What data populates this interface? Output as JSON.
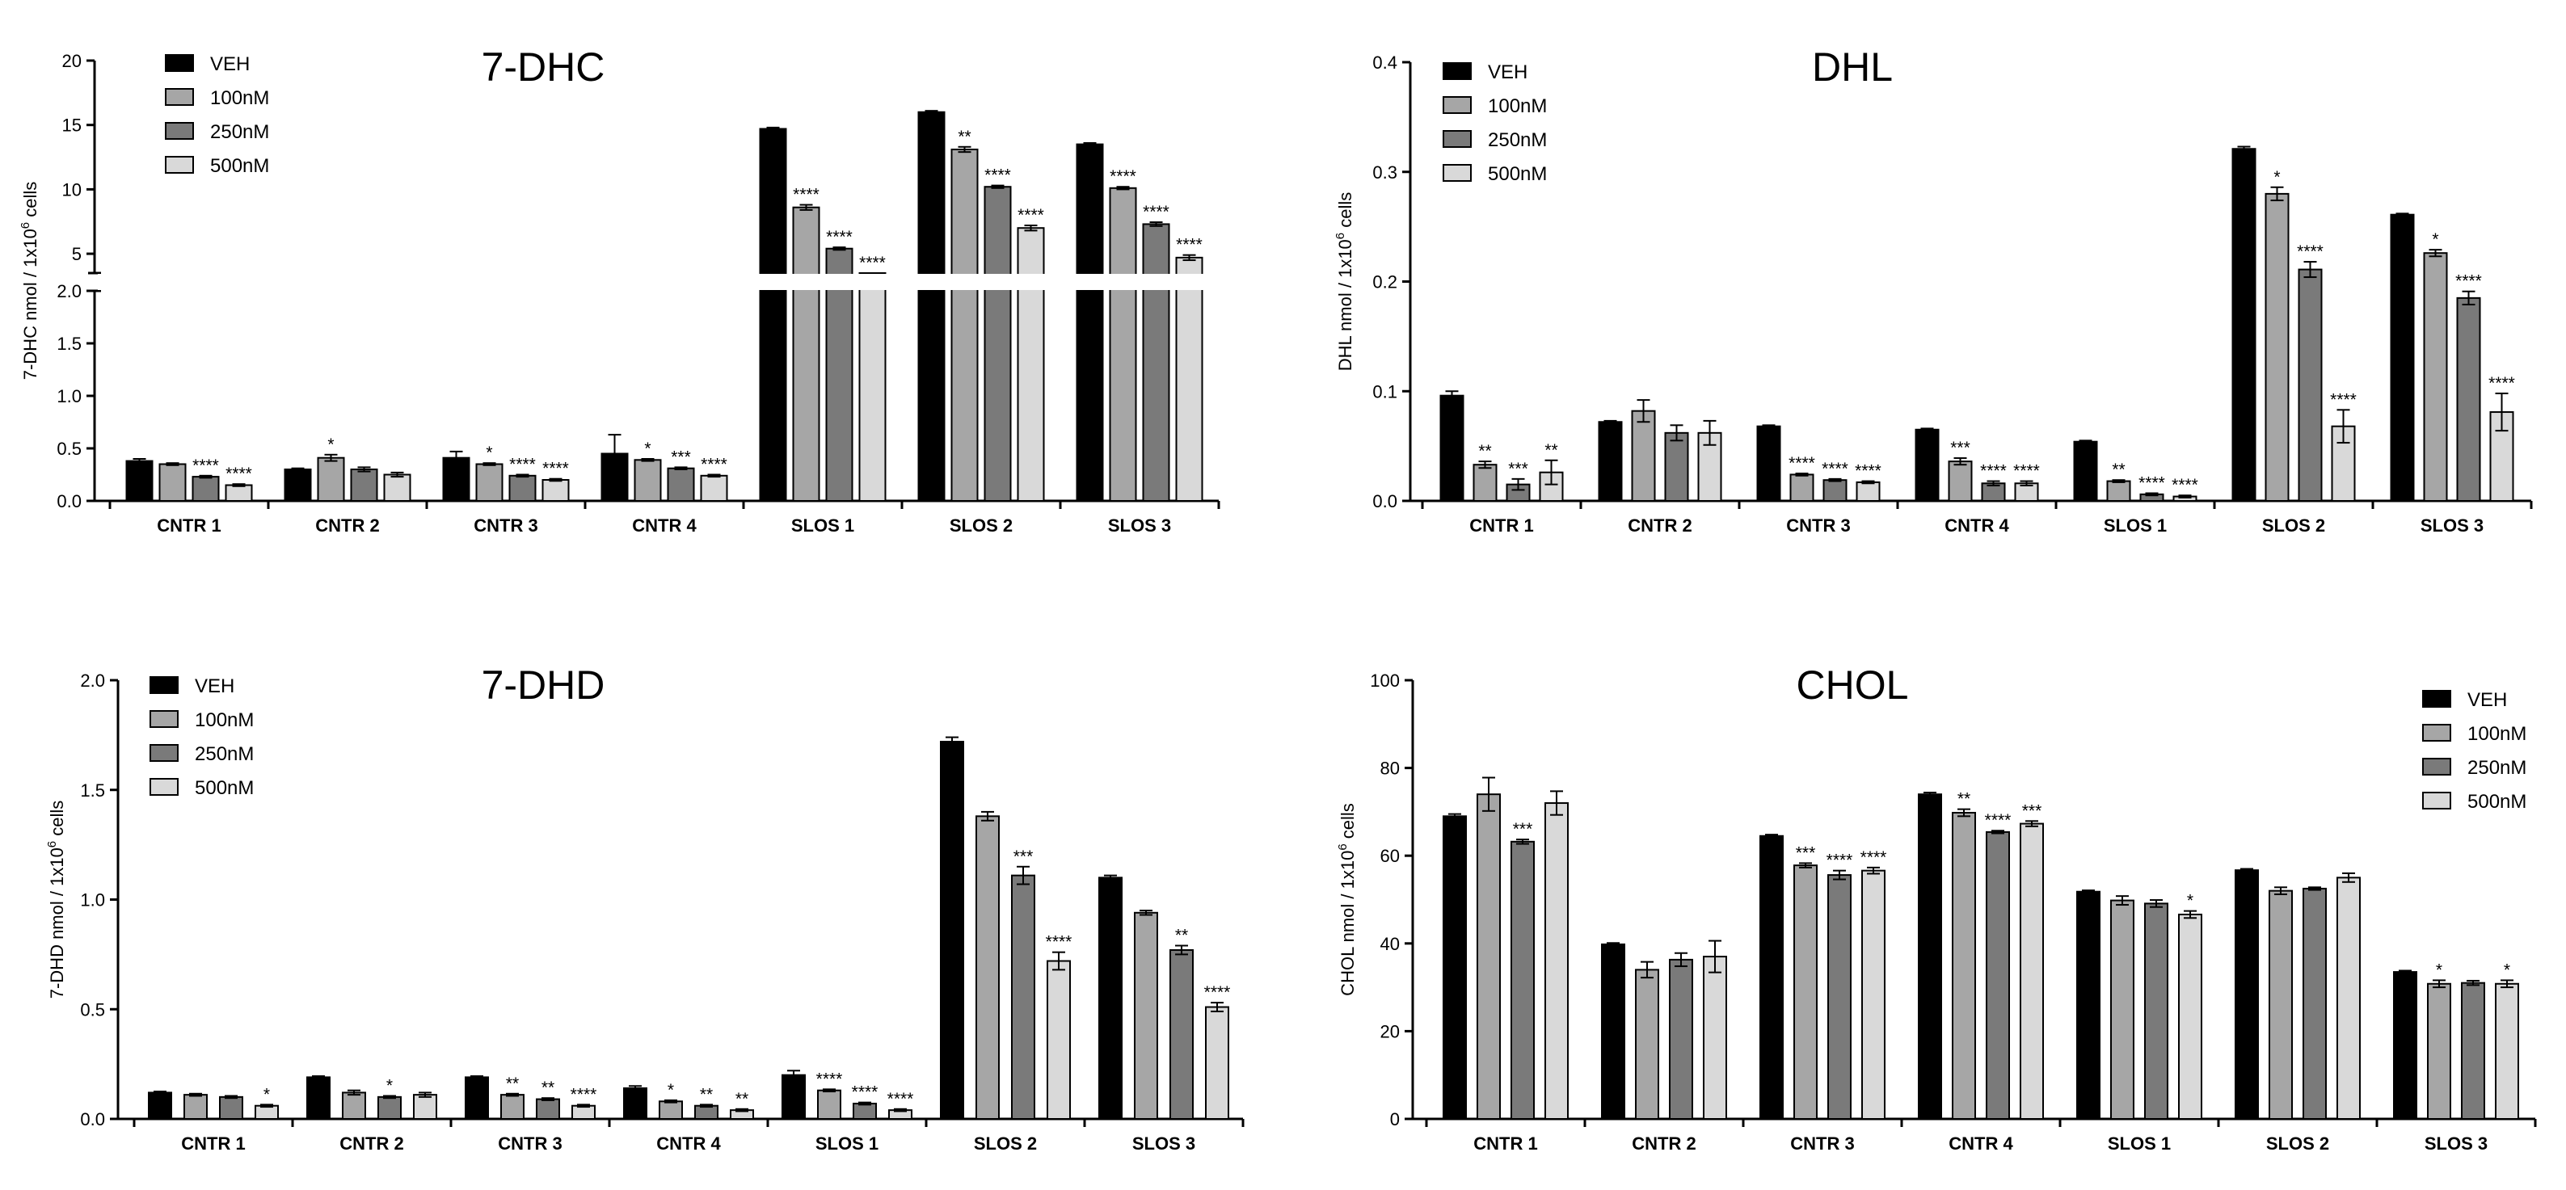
{
  "chart_data": [
    {
      "type": "bar",
      "title": "7-DHC",
      "ylabel": "7-DHC nmol  / 1x10",
      "ylabel_sup": "6",
      "ylabel_tail": " cells",
      "xlabel": "",
      "legend_position": "top-left",
      "axis_break": {
        "lower_range": [
          0,
          2
        ],
        "upper_range": [
          2,
          20
        ]
      },
      "ylim": [
        0,
        20
      ],
      "yticks": [
        "0.0",
        "0.5",
        "1.0",
        "1.5",
        "2.0",
        "5",
        "10",
        "15",
        "20"
      ],
      "ytick_values": [
        0,
        0.5,
        1,
        1.5,
        2,
        5,
        10,
        15,
        20
      ],
      "categories": [
        "CNTR 1",
        "CNTR 2",
        "CNTR 3",
        "CNTR 4",
        "SLOS 1",
        "SLOS 2",
        "SLOS 3"
      ],
      "series": [
        {
          "name": "VEH",
          "color": "#000000",
          "values": [
            0.38,
            0.3,
            0.41,
            0.45,
            14.7,
            16.0,
            13.5
          ],
          "errors": [
            0.02,
            0.01,
            0.06,
            0.18,
            0.1,
            0.1,
            0.1
          ],
          "stars": [
            "",
            "",
            "",
            "",
            "",
            "",
            ""
          ]
        },
        {
          "name": "100nM",
          "color": "#a6a6a6",
          "values": [
            0.35,
            0.41,
            0.35,
            0.39,
            8.6,
            13.1,
            10.1
          ],
          "errors": [
            0.01,
            0.03,
            0.01,
            0.01,
            0.2,
            0.2,
            0.1
          ],
          "stars": [
            "",
            "*",
            "*",
            "*",
            "****",
            "**",
            "****"
          ]
        },
        {
          "name": "250nM",
          "color": "#7a7a7a",
          "values": [
            0.23,
            0.3,
            0.24,
            0.31,
            5.4,
            10.2,
            7.3
          ],
          "errors": [
            0.01,
            0.02,
            0.01,
            0.01,
            0.1,
            0.1,
            0.15
          ],
          "stars": [
            "****",
            "",
            "****",
            "***",
            "****",
            "****",
            "****"
          ]
        },
        {
          "name": "500nM",
          "color": "#d9d9d9",
          "values": [
            0.15,
            0.25,
            0.2,
            0.24,
            3.4,
            7.0,
            4.7
          ],
          "errors": [
            0.01,
            0.02,
            0.01,
            0.01,
            0.1,
            0.2,
            0.2
          ],
          "stars": [
            "****",
            "",
            "****",
            "****",
            "****",
            "****",
            "****"
          ]
        }
      ]
    },
    {
      "type": "bar",
      "title": "DHL",
      "ylabel": "DHL nmol  / 1x10",
      "ylabel_sup": "6",
      "ylabel_tail": " cells",
      "xlabel": "",
      "legend_position": "top-left",
      "ylim": [
        0,
        0.4
      ],
      "yticks": [
        "0.0",
        "0.1",
        "0.2",
        "0.3",
        "0.4"
      ],
      "ytick_values": [
        0,
        0.1,
        0.2,
        0.3,
        0.4
      ],
      "categories": [
        "CNTR 1",
        "CNTR 2",
        "CNTR 3",
        "CNTR 4",
        "SLOS 1",
        "SLOS 2",
        "SLOS 3"
      ],
      "series": [
        {
          "name": "VEH",
          "color": "#000000",
          "values": [
            0.096,
            0.072,
            0.068,
            0.065,
            0.054,
            0.321,
            0.261
          ],
          "errors": [
            0.004,
            0.001,
            0.001,
            0.001,
            0.001,
            0.002,
            0.001
          ],
          "stars": [
            "",
            "",
            "",
            "",
            "",
            "",
            ""
          ]
        },
        {
          "name": "100nM",
          "color": "#a6a6a6",
          "values": [
            0.033,
            0.082,
            0.024,
            0.036,
            0.018,
            0.28,
            0.226
          ],
          "errors": [
            0.003,
            0.01,
            0.001,
            0.003,
            0.001,
            0.006,
            0.003
          ],
          "stars": [
            "**",
            "",
            "****",
            "***",
            "**",
            "*",
            "*"
          ]
        },
        {
          "name": "250nM",
          "color": "#7a7a7a",
          "values": [
            0.015,
            0.062,
            0.019,
            0.016,
            0.006,
            0.211,
            0.185
          ],
          "errors": [
            0.005,
            0.007,
            0.001,
            0.002,
            0.001,
            0.007,
            0.006
          ],
          "stars": [
            "***",
            "",
            "****",
            "****",
            "****",
            "****",
            "****"
          ]
        },
        {
          "name": "500nM",
          "color": "#d9d9d9",
          "values": [
            0.026,
            0.062,
            0.017,
            0.016,
            0.004,
            0.068,
            0.081
          ],
          "errors": [
            0.011,
            0.011,
            0.001,
            0.002,
            0.001,
            0.015,
            0.017
          ],
          "stars": [
            "**",
            "",
            "****",
            "****",
            "****",
            "****",
            "****"
          ]
        }
      ]
    },
    {
      "type": "bar",
      "title": "7-DHD",
      "ylabel": "7-DHD nmol  / 1x10",
      "ylabel_sup": "6",
      "ylabel_tail": " cells",
      "xlabel": "",
      "legend_position": "top-left",
      "ylim": [
        0,
        2.0
      ],
      "yticks": [
        "0.0",
        "0.5",
        "1.0",
        "1.5",
        "2.0"
      ],
      "ytick_values": [
        0,
        0.5,
        1.0,
        1.5,
        2.0
      ],
      "categories": [
        "CNTR 1",
        "CNTR 2",
        "CNTR 3",
        "CNTR 4",
        "SLOS 1",
        "SLOS 2",
        "SLOS 3"
      ],
      "series": [
        {
          "name": "VEH",
          "color": "#000000",
          "values": [
            0.12,
            0.19,
            0.19,
            0.14,
            0.2,
            1.72,
            1.1
          ],
          "errors": [
            0.005,
            0.005,
            0.005,
            0.01,
            0.02,
            0.02,
            0.01
          ],
          "stars": [
            "",
            "",
            "",
            "",
            "",
            "",
            ""
          ]
        },
        {
          "name": "100nM",
          "color": "#a6a6a6",
          "values": [
            0.11,
            0.12,
            0.11,
            0.08,
            0.13,
            1.38,
            0.94
          ],
          "errors": [
            0.005,
            0.01,
            0.005,
            0.005,
            0.005,
            0.02,
            0.01
          ],
          "stars": [
            "",
            "",
            "**",
            "*",
            "****",
            "",
            ""
          ]
        },
        {
          "name": "250nM",
          "color": "#7a7a7a",
          "values": [
            0.1,
            0.1,
            0.09,
            0.06,
            0.07,
            1.11,
            0.77
          ],
          "errors": [
            0.005,
            0.005,
            0.005,
            0.005,
            0.005,
            0.04,
            0.02
          ],
          "stars": [
            "",
            "*",
            "**",
            "**",
            "****",
            "***",
            "**"
          ]
        },
        {
          "name": "500nM",
          "color": "#d9d9d9",
          "values": [
            0.06,
            0.11,
            0.06,
            0.04,
            0.04,
            0.72,
            0.51
          ],
          "errors": [
            0.005,
            0.01,
            0.005,
            0.005,
            0.005,
            0.04,
            0.02
          ],
          "stars": [
            "*",
            "",
            "****",
            "**",
            "****",
            "****",
            "****"
          ]
        }
      ]
    },
    {
      "type": "bar",
      "title": "CHOL",
      "ylabel": "CHOL nmol  / 1x10",
      "ylabel_sup": "6",
      "ylabel_tail": " cells",
      "xlabel": "",
      "legend_position": "top-right",
      "ylim": [
        0,
        100
      ],
      "yticks": [
        "0",
        "20",
        "40",
        "60",
        "80",
        "100"
      ],
      "ytick_values": [
        0,
        20,
        40,
        60,
        80,
        100
      ],
      "categories": [
        "CNTR 1",
        "CNTR 2",
        "CNTR 3",
        "CNTR 4",
        "SLOS 1",
        "SLOS 2",
        "SLOS 3"
      ],
      "series": [
        {
          "name": "VEH",
          "color": "#000000",
          "values": [
            69,
            39.8,
            64.5,
            74,
            51.8,
            56.7,
            33.5
          ],
          "errors": [
            0.5,
            0.3,
            0.3,
            0.4,
            0.3,
            0.3,
            0.3
          ],
          "stars": [
            "",
            "",
            "",
            "",
            "",
            "",
            ""
          ]
        },
        {
          "name": "100nM",
          "color": "#a6a6a6",
          "values": [
            74,
            34,
            57.8,
            69.8,
            49.8,
            52,
            30.8
          ],
          "errors": [
            3.8,
            1.8,
            0.5,
            0.8,
            1.0,
            0.8,
            0.8
          ],
          "stars": [
            "",
            "",
            "***",
            "**",
            "",
            "",
            "*"
          ]
        },
        {
          "name": "250nM",
          "color": "#7a7a7a",
          "values": [
            63.2,
            36.3,
            55.6,
            65.4,
            49.1,
            52.5,
            31
          ],
          "errors": [
            0.5,
            1.5,
            1.0,
            0.3,
            0.8,
            0.3,
            0.5
          ],
          "stars": [
            "***",
            "",
            "****",
            "****",
            "",
            "",
            ""
          ]
        },
        {
          "name": "500nM",
          "color": "#d9d9d9",
          "values": [
            72,
            37,
            56.6,
            67.3,
            46.6,
            55,
            30.8
          ],
          "errors": [
            2.7,
            3.6,
            0.7,
            0.6,
            0.8,
            1.0,
            0.8
          ],
          "stars": [
            "",
            "",
            "****",
            "***",
            "*",
            "",
            "*"
          ]
        }
      ]
    }
  ]
}
